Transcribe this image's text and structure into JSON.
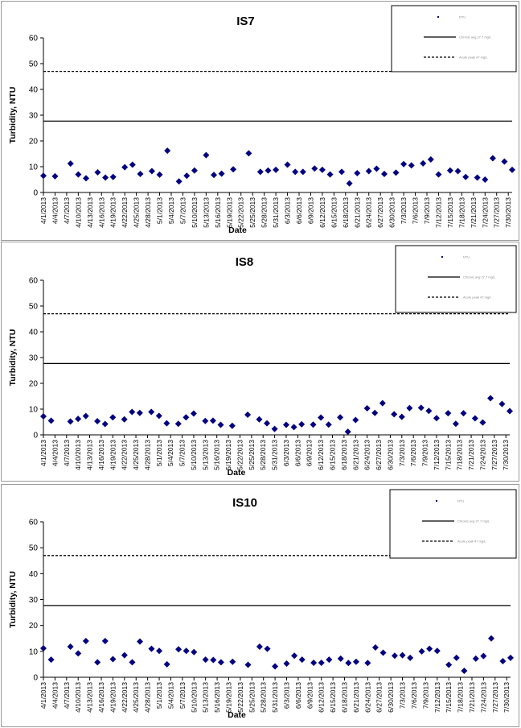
{
  "legend_labels": {
    "obs": "NTU",
    "chronic": "Chronic avg 27.7 mg/L",
    "acute": "Acute peak 47 mg/L"
  },
  "chart_data": [
    {
      "type": "scatter",
      "title": "IS7",
      "xlabel": "Date",
      "ylabel": "Turbidity, NTU",
      "ylim": [
        0,
        60
      ],
      "yticks": [
        0,
        10,
        20,
        30,
        40,
        50,
        60
      ],
      "xticks": [
        "4/1/2013",
        "4/4/2013",
        "4/7/2013",
        "4/10/2013",
        "4/13/2013",
        "4/16/2013",
        "4/19/2013",
        "4/22/2013",
        "4/25/2013",
        "4/28/2013",
        "5/1/2013",
        "5/4/2013",
        "5/7/2013",
        "5/10/2013",
        "5/13/2013",
        "5/16/2013",
        "5/19/2013",
        "5/22/2013",
        "5/25/2013",
        "5/28/2013",
        "5/31/2013",
        "6/3/2013",
        "6/6/2013",
        "6/9/2013",
        "6/12/2013",
        "6/15/2013",
        "6/18/2013",
        "6/21/2013",
        "6/24/2013",
        "6/27/2013",
        "6/30/2013",
        "7/3/2013",
        "7/6/2013",
        "7/9/2013",
        "7/12/2013",
        "7/15/2013",
        "7/18/2013",
        "7/21/2013",
        "7/24/2013",
        "7/27/2013",
        "7/30/2013"
      ],
      "chronic_level": 27.7,
      "acute_level": 47,
      "legend": "top-right",
      "grid": false,
      "series": [
        {
          "marker": "diamond",
          "color": "#000080",
          "points": [
            [
              "4/1/2013",
              6.5
            ],
            [
              "4/4/2013",
              6.3
            ],
            [
              "4/8/2013",
              11.2
            ],
            [
              "4/10/2013",
              7
            ],
            [
              "4/12/2013",
              5.5
            ],
            [
              "4/15/2013",
              7.8
            ],
            [
              "4/17/2013",
              5.8
            ],
            [
              "4/19/2013",
              6
            ],
            [
              "4/22/2013",
              9.8
            ],
            [
              "4/24/2013",
              10.8
            ],
            [
              "4/26/2013",
              7.2
            ],
            [
              "4/29/2013",
              8.3
            ],
            [
              "5/1/2013",
              6.9
            ],
            [
              "5/3/2013",
              16.2
            ],
            [
              "5/6/2013",
              4.3
            ],
            [
              "5/8/2013",
              6.5
            ],
            [
              "5/10/2013",
              8.5
            ],
            [
              "5/13/2013",
              14.5
            ],
            [
              "5/15/2013",
              6.8
            ],
            [
              "5/17/2013",
              7.3
            ],
            [
              "5/20/2013",
              9
            ],
            [
              "5/24/2013",
              15.2
            ],
            [
              "5/27/2013",
              8
            ],
            [
              "5/29/2013",
              8.5
            ],
            [
              "5/31/2013",
              8.8
            ],
            [
              "6/3/2013",
              10.8
            ],
            [
              "6/5/2013",
              8
            ],
            [
              "6/7/2013",
              8
            ],
            [
              "6/10/2013",
              9.3
            ],
            [
              "6/12/2013",
              8.8
            ],
            [
              "6/14/2013",
              7
            ],
            [
              "6/17/2013",
              8
            ],
            [
              "6/19/2013",
              3.5
            ],
            [
              "6/21/2013",
              7.5
            ],
            [
              "6/24/2013",
              8.3
            ],
            [
              "6/26/2013",
              9.2
            ],
            [
              "6/28/2013",
              7.2
            ],
            [
              "7/1/2013",
              7.7
            ],
            [
              "7/3/2013",
              11
            ],
            [
              "7/5/2013",
              10.5
            ],
            [
              "7/8/2013",
              11.3
            ],
            [
              "7/10/2013",
              12.8
            ],
            [
              "7/12/2013",
              7
            ],
            [
              "7/15/2013",
              8.5
            ],
            [
              "7/17/2013",
              8.3
            ],
            [
              "7/19/2013",
              6
            ],
            [
              "7/22/2013",
              5.8
            ],
            [
              "7/24/2013",
              5
            ],
            [
              "7/26/2013",
              13.3
            ],
            [
              "7/29/2013",
              12
            ],
            [
              "7/31/2013",
              8.8
            ]
          ]
        }
      ]
    },
    {
      "type": "scatter",
      "title": "IS8",
      "xlabel": "Date",
      "ylabel": "Turbidity, NTU",
      "ylim": [
        0,
        60
      ],
      "yticks": [
        0,
        10,
        20,
        30,
        40,
        50,
        60
      ],
      "xticks": [
        "4/1/2013",
        "4/4/2013",
        "4/7/2013",
        "4/10/2013",
        "4/13/2013",
        "4/16/2013",
        "4/19/2013",
        "4/22/2013",
        "4/25/2013",
        "4/28/2013",
        "5/1/2013",
        "5/4/2013",
        "5/7/2013",
        "5/10/2013",
        "5/13/2013",
        "5/16/2013",
        "5/19/2013",
        "5/22/2013",
        "5/25/2013",
        "5/28/2013",
        "5/31/2013",
        "6/3/2013",
        "6/6/2013",
        "6/9/2013",
        "6/12/2013",
        "6/15/2013",
        "6/18/2013",
        "6/21/2013",
        "6/24/2013",
        "6/27/2013",
        "6/30/2013",
        "7/3/2013",
        "7/6/2013",
        "7/9/2013",
        "7/12/2013",
        "7/15/2013",
        "7/18/2013",
        "7/21/2013",
        "7/24/2013",
        "7/27/2013",
        "7/30/2013"
      ],
      "chronic_level": 27.7,
      "acute_level": 47,
      "legend": "top-right",
      "grid": false,
      "series": [
        {
          "marker": "diamond",
          "color": "#000080",
          "points": [
            [
              "4/1/2013",
              7.2
            ],
            [
              "4/3/2013",
              5.5
            ],
            [
              "4/8/2013",
              5.2
            ],
            [
              "4/10/2013",
              6.2
            ],
            [
              "4/12/2013",
              7.3
            ],
            [
              "4/15/2013",
              5.3
            ],
            [
              "4/17/2013",
              4.2
            ],
            [
              "4/19/2013",
              6.8
            ],
            [
              "4/22/2013",
              6
            ],
            [
              "4/24/2013",
              8.9
            ],
            [
              "4/26/2013",
              8.5
            ],
            [
              "4/29/2013",
              8.9
            ],
            [
              "5/1/2013",
              7.4
            ],
            [
              "5/3/2013",
              4.5
            ],
            [
              "5/6/2013",
              4.3
            ],
            [
              "5/8/2013",
              6.8
            ],
            [
              "5/10/2013",
              8.3
            ],
            [
              "5/13/2013",
              5.4
            ],
            [
              "5/15/2013",
              5.5
            ],
            [
              "5/17/2013",
              3.9
            ],
            [
              "5/20/2013",
              3.5
            ],
            [
              "5/24/2013",
              7.8
            ],
            [
              "5/27/2013",
              6
            ],
            [
              "5/29/2013",
              4.5
            ],
            [
              "5/31/2013",
              2.3
            ],
            [
              "6/3/2013",
              3.9
            ],
            [
              "6/5/2013",
              3
            ],
            [
              "6/7/2013",
              4.1
            ],
            [
              "6/10/2013",
              4
            ],
            [
              "6/12/2013",
              6.7
            ],
            [
              "6/14/2013",
              4
            ],
            [
              "6/17/2013",
              6.8
            ],
            [
              "6/19/2013",
              1.2
            ],
            [
              "6/21/2013",
              5.8
            ],
            [
              "6/24/2013",
              10.3
            ],
            [
              "6/26/2013",
              8.5
            ],
            [
              "6/28/2013",
              12.3
            ],
            [
              "7/1/2013",
              8
            ],
            [
              "7/3/2013",
              7
            ],
            [
              "7/5/2013",
              10.4
            ],
            [
              "7/8/2013",
              10.5
            ],
            [
              "7/10/2013",
              9.3
            ],
            [
              "7/12/2013",
              6.5
            ],
            [
              "7/15/2013",
              8.4
            ],
            [
              "7/17/2013",
              4.3
            ],
            [
              "7/19/2013",
              8.4
            ],
            [
              "7/22/2013",
              6.4
            ],
            [
              "7/24/2013",
              4.8
            ],
            [
              "7/26/2013",
              14.2
            ],
            [
              "7/29/2013",
              12
            ],
            [
              "7/31/2013",
              9.2
            ]
          ]
        }
      ]
    },
    {
      "type": "scatter",
      "title": "IS10",
      "xlabel": "Date",
      "ylabel": "Turbidity, NTU",
      "ylim": [
        0,
        60
      ],
      "yticks": [
        0,
        10,
        20,
        30,
        40,
        50,
        60
      ],
      "xticks": [
        "4/1/2013",
        "4/4/2013",
        "4/7/2013",
        "4/10/2013",
        "4/13/2013",
        "4/16/2013",
        "4/19/2013",
        "4/22/2013",
        "4/25/2013",
        "4/28/2013",
        "5/1/2013",
        "5/4/2013",
        "5/7/2013",
        "5/10/2013",
        "5/13/2013",
        "5/16/2013",
        "5/19/2013",
        "5/22/2013",
        "5/25/2013",
        "5/28/2013",
        "5/31/2013",
        "6/3/2013",
        "6/6/2013",
        "6/9/2013",
        "6/12/2013",
        "6/15/2013",
        "6/18/2013",
        "6/21/2013",
        "6/24/2013",
        "6/27/2013",
        "6/30/2013",
        "7/3/2013",
        "7/6/2013",
        "7/9/2013",
        "7/12/2013",
        "7/15/2013",
        "7/18/2013",
        "7/21/2013",
        "7/24/2013",
        "7/27/2013",
        "7/30/2013"
      ],
      "chronic_level": 27.7,
      "acute_level": 47,
      "legend": "top-right",
      "grid": false,
      "series": [
        {
          "marker": "diamond",
          "color": "#000080",
          "points": [
            [
              "4/1/2013",
              11.2
            ],
            [
              "4/3/2013",
              6.8
            ],
            [
              "4/8/2013",
              11.8
            ],
            [
              "4/10/2013",
              9.2
            ],
            [
              "4/12/2013",
              14
            ],
            [
              "4/15/2013",
              5.8
            ],
            [
              "4/17/2013",
              14
            ],
            [
              "4/19/2013",
              7
            ],
            [
              "4/22/2013",
              8.5
            ],
            [
              "4/24/2013",
              5.8
            ],
            [
              "4/26/2013",
              13.8
            ],
            [
              "4/29/2013",
              11
            ],
            [
              "5/1/2013",
              10.2
            ],
            [
              "5/3/2013",
              5
            ],
            [
              "5/6/2013",
              10.8
            ],
            [
              "5/8/2013",
              10.2
            ],
            [
              "5/10/2013",
              9.7
            ],
            [
              "5/13/2013",
              6.8
            ],
            [
              "5/15/2013",
              6.7
            ],
            [
              "5/17/2013",
              5.8
            ],
            [
              "5/20/2013",
              6
            ],
            [
              "5/24/2013",
              4.8
            ],
            [
              "5/27/2013",
              11.8
            ],
            [
              "5/29/2013",
              11
            ],
            [
              "5/31/2013",
              4.2
            ],
            [
              "6/3/2013",
              5.3
            ],
            [
              "6/5/2013",
              8.3
            ],
            [
              "6/7/2013",
              6.8
            ],
            [
              "6/10/2013",
              5.6
            ],
            [
              "6/12/2013",
              5.6
            ],
            [
              "6/14/2013",
              6.8
            ],
            [
              "6/17/2013",
              7.2
            ],
            [
              "6/19/2013",
              5.5
            ],
            [
              "6/21/2013",
              6
            ],
            [
              "6/24/2013",
              5.5
            ],
            [
              "6/26/2013",
              11.5
            ],
            [
              "6/28/2013",
              9.5
            ],
            [
              "7/1/2013",
              8.3
            ],
            [
              "7/3/2013",
              8.5
            ],
            [
              "7/5/2013",
              7.5
            ],
            [
              "7/8/2013",
              10
            ],
            [
              "7/10/2013",
              11
            ],
            [
              "7/12/2013",
              10.2
            ],
            [
              "7/15/2013",
              4.8
            ],
            [
              "7/17/2013",
              7.5
            ],
            [
              "7/19/2013",
              2.5
            ],
            [
              "7/22/2013",
              7.2
            ],
            [
              "7/24/2013",
              8.2
            ],
            [
              "7/26/2013",
              15
            ],
            [
              "7/29/2013",
              6.2
            ],
            [
              "7/31/2013",
              7.5
            ]
          ]
        }
      ]
    }
  ]
}
